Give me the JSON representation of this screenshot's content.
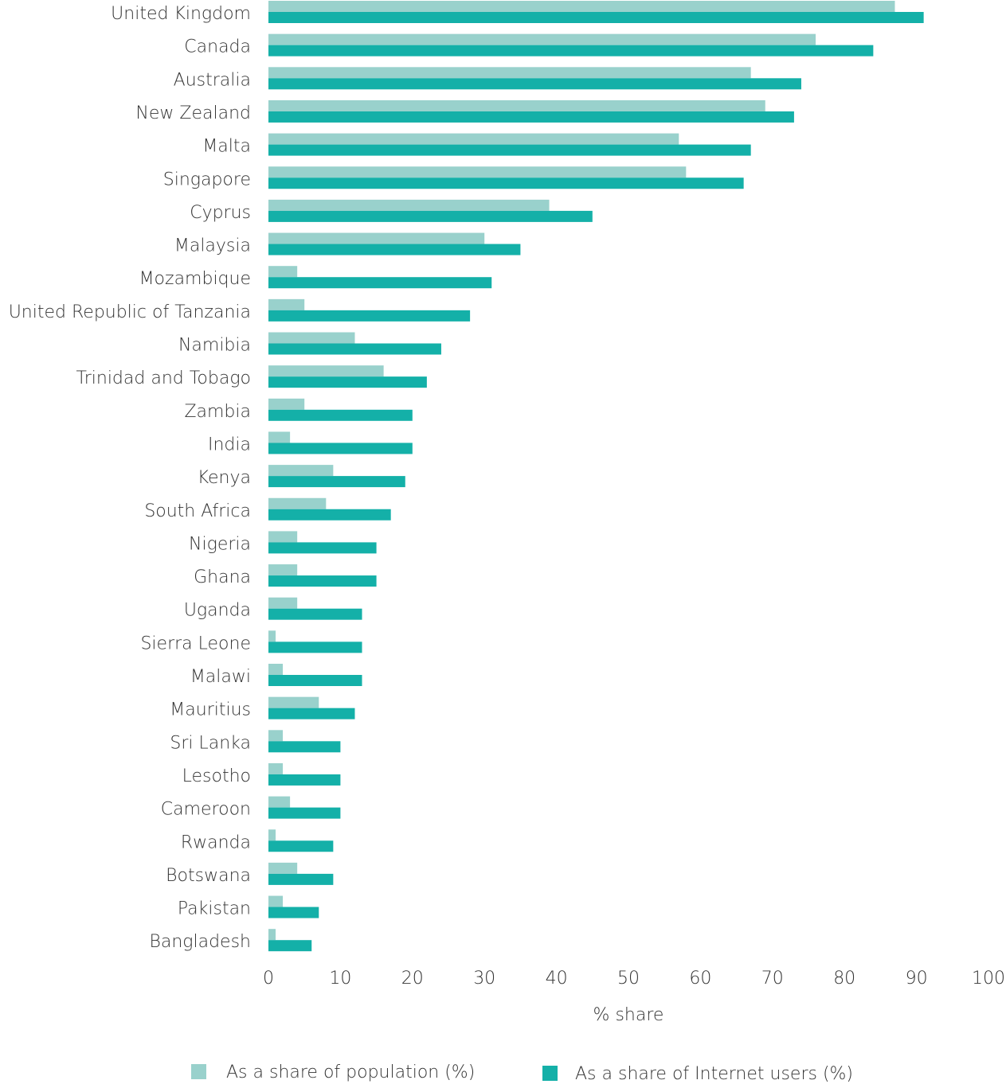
{
  "chart_data": {
    "type": "bar",
    "orientation": "horizontal",
    "categories": [
      "United Kingdom",
      "Canada",
      "Australia",
      "New Zealand",
      "Malta",
      "Singapore",
      "Cyprus",
      "Malaysia",
      "Mozambique",
      "United Republic of Tanzania",
      "Namibia",
      "Trinidad and Tobago",
      "Zambia",
      "India",
      "Kenya",
      "South Africa",
      "Nigeria",
      "Ghana",
      "Uganda",
      "Sierra Leone",
      "Malawi",
      "Mauritius",
      "Sri Lanka",
      "Lesotho",
      "Cameroon",
      "Rwanda",
      "Botswana",
      "Pakistan",
      "Bangladesh"
    ],
    "series": [
      {
        "name": "As a share of population (%)",
        "color": "#99d1cc",
        "values": [
          87,
          76,
          67,
          69,
          57,
          58,
          39,
          30,
          4,
          5,
          12,
          16,
          5,
          3,
          9,
          8,
          4,
          4,
          4,
          1,
          2,
          7,
          2,
          2,
          3,
          1,
          4,
          2,
          1
        ]
      },
      {
        "name": "As a share of Internet users (%)",
        "color": "#14b0a8",
        "values": [
          91,
          84,
          74,
          73,
          67,
          66,
          45,
          35,
          31,
          28,
          24,
          22,
          20,
          20,
          19,
          17,
          15,
          15,
          13,
          13,
          13,
          12,
          10,
          10,
          10,
          9,
          9,
          7,
          6
        ]
      }
    ],
    "xlabel": "% share",
    "xlim": [
      0,
      100
    ],
    "xticks": [
      0,
      10,
      20,
      30,
      40,
      50,
      60,
      70,
      80,
      90,
      100
    ],
    "legend_position": "bottom",
    "grid": false
  }
}
